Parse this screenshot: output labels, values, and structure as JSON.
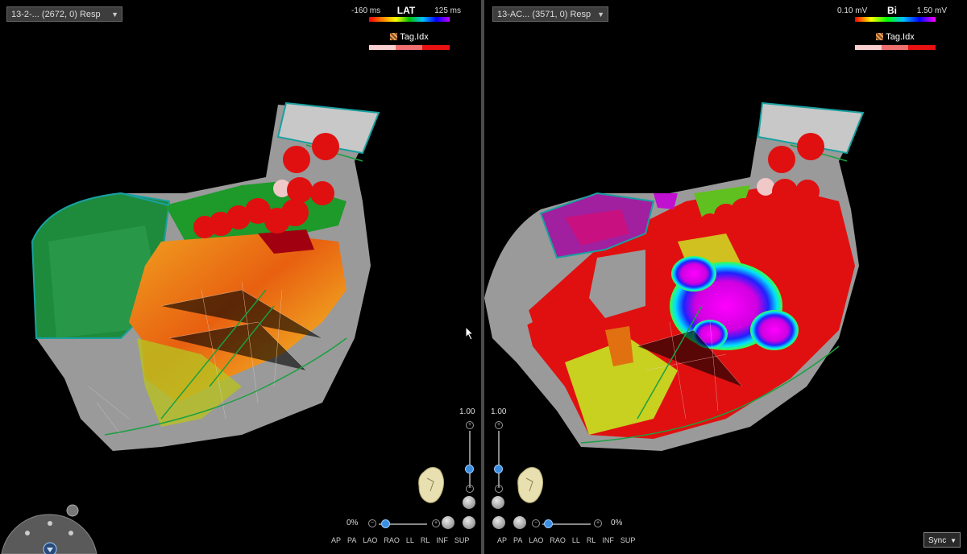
{
  "left_map": {
    "map_select_value": "13-2-... (2672, 0) Resp",
    "legend": {
      "min": "-160 ms",
      "name": "LAT",
      "max": "125 ms",
      "tag_label": "Tag.Idx"
    },
    "transparency_value": "1.00",
    "opacity_pct": "0%",
    "views": [
      "AP",
      "PA",
      "LAO",
      "RAO",
      "LL",
      "RL",
      "INF",
      "SUP"
    ]
  },
  "right_map": {
    "map_select_value": "13-AC... (3571, 0) Resp",
    "legend": {
      "min": "0.10 mV",
      "name": "Bi",
      "max": "1.50 mV",
      "tag_label": "Tag.Idx"
    },
    "transparency_value": "1.00",
    "opacity_pct": "0%",
    "views": [
      "AP",
      "PA",
      "LAO",
      "RAO",
      "LL",
      "RL",
      "INF",
      "SUP"
    ]
  },
  "sync_select_value": "Sync",
  "icons": {
    "dropdown": "chevron-down-icon",
    "tag": "tag-grid-icon",
    "heart_orientation": "heart-orientation-icon",
    "nav": "navigation-wheel-icon",
    "cursor": "mouse-pointer-icon"
  },
  "colors": {
    "background": "#000000",
    "lesion_red": "#e01010",
    "lat_scale": [
      "#ff0000",
      "#ff8000",
      "#ffff00",
      "#00c000",
      "#00c0ff",
      "#0000ff",
      "#c000ff"
    ],
    "bi_scale": [
      "#ff0000",
      "#ffff00",
      "#00ff00",
      "#00c0ff",
      "#0000ff",
      "#ff00ff"
    ]
  }
}
